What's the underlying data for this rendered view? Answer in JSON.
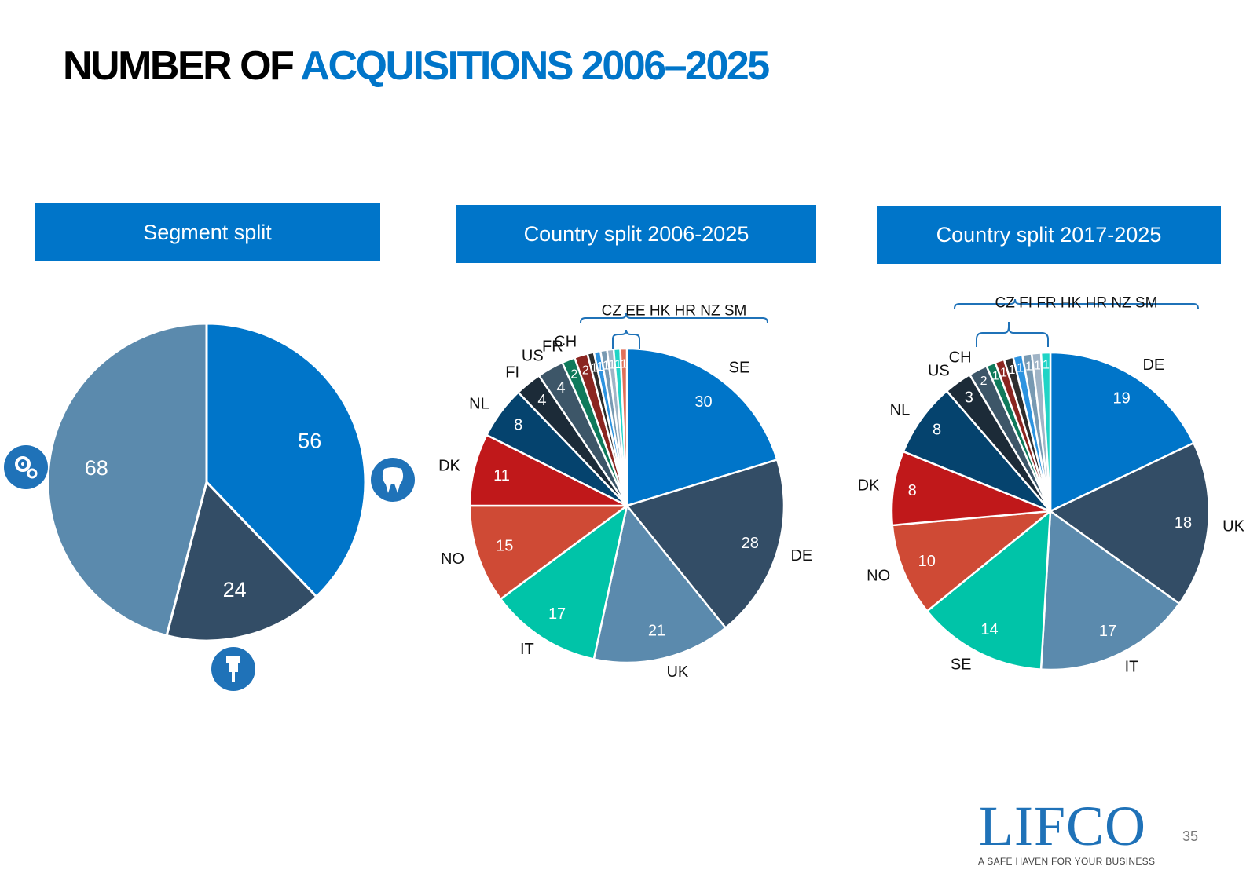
{
  "title": {
    "part1": "NUMBER OF",
    "part2": "ACQUISITIONS 2006–2025"
  },
  "panels": {
    "segment": "Segment split",
    "country_all": "Country split 2006-2025",
    "country_recent": "Country split 2017-2025"
  },
  "chart_data": [
    {
      "type": "pie",
      "title": "Segment split",
      "categories": [
        "Dental",
        "Demolition & Tools",
        "Systems Solutions"
      ],
      "values": [
        56,
        24,
        68
      ],
      "colors": [
        "#0075c9",
        "#334d66",
        "#5b8aad"
      ],
      "segment_icons": [
        "tooth-icon",
        "drill-icon",
        "gears-icon"
      ]
    },
    {
      "type": "pie",
      "title": "Country split 2006-2025",
      "categories": [
        "SE",
        "DE",
        "UK",
        "IT",
        "NO",
        "DK",
        "NL",
        "FI",
        "US",
        "FR",
        "CH",
        "CZ",
        "EE",
        "HK",
        "HR",
        "NZ",
        "SM"
      ],
      "values": [
        30,
        28,
        21,
        17,
        15,
        11,
        8,
        4,
        4,
        2,
        2,
        1,
        1,
        1,
        1,
        1,
        1
      ],
      "colors": [
        "#0075c9",
        "#334d66",
        "#5b8aad",
        "#00c4a8",
        "#cf4a35",
        "#c0181a",
        "#05436e",
        "#1c2b38",
        "#3d5668",
        "#0f7a5b",
        "#8b2520",
        "#2e2e2e",
        "#2c93e0",
        "#7799b2",
        "#a0b4c6",
        "#20d4c6",
        "#e0705a"
      ],
      "grouped_label": "CZ  EE  HK  HR  NZ  SM"
    },
    {
      "type": "pie",
      "title": "Country split 2017-2025",
      "categories": [
        "DE",
        "UK",
        "IT",
        "SE",
        "NO",
        "DK",
        "NL",
        "US",
        "CH",
        "CZ",
        "FI",
        "FR",
        "HK",
        "HR",
        "NZ",
        "SM"
      ],
      "values": [
        19,
        18,
        17,
        14,
        10,
        8,
        8,
        3,
        2,
        1,
        1,
        1,
        1,
        1,
        1,
        1
      ],
      "colors": [
        "#0075c9",
        "#334d66",
        "#5b8aad",
        "#00c4a8",
        "#cf4a35",
        "#c0181a",
        "#05436e",
        "#1c2b38",
        "#3d5668",
        "#0f7a5b",
        "#8b2520",
        "#2e2e2e",
        "#2c93e0",
        "#7799b2",
        "#a0b4c6",
        "#20d4c6"
      ],
      "grouped_label": "CZ  FI  FR  HK  HR  NZ  SM"
    }
  ],
  "footer": {
    "logo": "LIFCO",
    "tagline": "A SAFE HAVEN FOR YOUR BUSINESS",
    "page": "35"
  }
}
